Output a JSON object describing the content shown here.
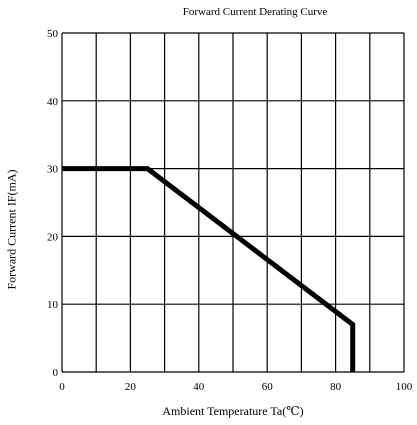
{
  "chart_data": {
    "type": "line",
    "title": "Forward Current Derating Curve",
    "xlabel": "Ambient Temperature Ta(℃)",
    "ylabel": "Forward Current IF(mA)",
    "xlim": [
      0,
      100
    ],
    "ylim": [
      0,
      50
    ],
    "x_ticks": [
      0,
      20,
      40,
      60,
      80,
      100
    ],
    "y_ticks": [
      0,
      10,
      20,
      30,
      40,
      50
    ],
    "grid_x_step": 10,
    "grid_y_step": 10,
    "grid": true,
    "series": [
      {
        "x": [
          0,
          25,
          85,
          85
        ],
        "y": [
          30,
          30,
          7,
          0
        ]
      }
    ]
  }
}
